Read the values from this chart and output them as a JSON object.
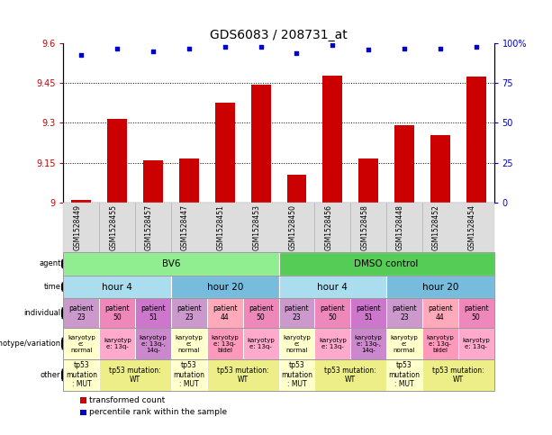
{
  "title": "GDS6083 / 208731_at",
  "samples": [
    "GSM1528449",
    "GSM1528455",
    "GSM1528457",
    "GSM1528447",
    "GSM1528451",
    "GSM1528453",
    "GSM1528450",
    "GSM1528456",
    "GSM1528458",
    "GSM1528448",
    "GSM1528452",
    "GSM1528454"
  ],
  "bar_values": [
    9.01,
    9.315,
    9.16,
    9.165,
    9.375,
    9.445,
    9.105,
    9.48,
    9.165,
    9.29,
    9.255,
    9.475
  ],
  "dot_values": [
    93,
    97,
    95,
    97,
    98,
    98,
    94,
    99,
    96,
    97,
    97,
    98
  ],
  "ylim_left": [
    9.0,
    9.6
  ],
  "ylim_right": [
    0,
    100
  ],
  "yticks_left": [
    9.0,
    9.15,
    9.3,
    9.45,
    9.6
  ],
  "yticks_right": [
    0,
    25,
    50,
    75,
    100
  ],
  "ytick_labels_left": [
    "9",
    "9.15",
    "9.3",
    "9.45",
    "9.6"
  ],
  "ytick_labels_right": [
    "0",
    "25",
    "50",
    "75",
    "100%"
  ],
  "bar_color": "#cc0000",
  "dot_color": "#0000cc",
  "agent_row": {
    "label": "agent",
    "groups": [
      {
        "text": "BV6",
        "span": [
          0,
          6
        ],
        "color": "#90ee90"
      },
      {
        "text": "DMSO control",
        "span": [
          6,
          12
        ],
        "color": "#55cc55"
      }
    ]
  },
  "time_row": {
    "label": "time",
    "groups": [
      {
        "text": "hour 4",
        "span": [
          0,
          3
        ],
        "color": "#aaddee"
      },
      {
        "text": "hour 20",
        "span": [
          3,
          6
        ],
        "color": "#77bbdd"
      },
      {
        "text": "hour 4",
        "span": [
          6,
          9
        ],
        "color": "#aaddee"
      },
      {
        "text": "hour 20",
        "span": [
          9,
          12
        ],
        "color": "#77bbdd"
      }
    ]
  },
  "individual_row": {
    "label": "individual",
    "cells": [
      {
        "text": "patient\n23",
        "color": "#cc99cc"
      },
      {
        "text": "patient\n50",
        "color": "#ee88bb"
      },
      {
        "text": "patient\n51",
        "color": "#cc77cc"
      },
      {
        "text": "patient\n23",
        "color": "#cc99cc"
      },
      {
        "text": "patient\n44",
        "color": "#ffaabb"
      },
      {
        "text": "patient\n50",
        "color": "#ee88bb"
      },
      {
        "text": "patient\n23",
        "color": "#cc99cc"
      },
      {
        "text": "patient\n50",
        "color": "#ee88bb"
      },
      {
        "text": "patient\n51",
        "color": "#cc77cc"
      },
      {
        "text": "patient\n23",
        "color": "#cc99cc"
      },
      {
        "text": "patient\n44",
        "color": "#ffaabb"
      },
      {
        "text": "patient\n50",
        "color": "#ee88bb"
      }
    ]
  },
  "genotype_row": {
    "label": "genotype/variation",
    "cells": [
      {
        "text": "karyotyp\ne:\nnormal",
        "color": "#ffffcc"
      },
      {
        "text": "karyotyp\ne: 13q-",
        "color": "#ffaacc"
      },
      {
        "text": "karyotyp\ne: 13q-,\n14q-",
        "color": "#cc88cc"
      },
      {
        "text": "karyotyp\ne:\nnormal",
        "color": "#ffffcc"
      },
      {
        "text": "karyotyp\ne: 13q-\nbidel",
        "color": "#ff99bb"
      },
      {
        "text": "karyotyp\ne: 13q-",
        "color": "#ffaacc"
      },
      {
        "text": "karyotyp\ne:\nnormal",
        "color": "#ffffcc"
      },
      {
        "text": "karyotyp\ne: 13q-",
        "color": "#ffaacc"
      },
      {
        "text": "karyotyp\ne: 13q-,\n14q-",
        "color": "#cc88cc"
      },
      {
        "text": "karyotyp\ne:\nnormal",
        "color": "#ffffcc"
      },
      {
        "text": "karyotyp\ne: 13q-\nbidel",
        "color": "#ff99bb"
      },
      {
        "text": "karyotyp\ne: 13q-",
        "color": "#ffaacc"
      }
    ]
  },
  "other_row": {
    "label": "other",
    "groups": [
      {
        "text": "tp53\nmutation\n: MUT",
        "span": [
          0,
          1
        ],
        "color": "#ffffcc"
      },
      {
        "text": "tp53 mutation:\nWT",
        "span": [
          1,
          3
        ],
        "color": "#eeee88"
      },
      {
        "text": "tp53\nmutation\n: MUT",
        "span": [
          3,
          4
        ],
        "color": "#ffffcc"
      },
      {
        "text": "tp53 mutation:\nWT",
        "span": [
          4,
          6
        ],
        "color": "#eeee88"
      },
      {
        "text": "tp53\nmutation\n: MUT",
        "span": [
          6,
          7
        ],
        "color": "#ffffcc"
      },
      {
        "text": "tp53 mutation:\nWT",
        "span": [
          7,
          9
        ],
        "color": "#eeee88"
      },
      {
        "text": "tp53\nmutation\n: MUT",
        "span": [
          9,
          10
        ],
        "color": "#ffffcc"
      },
      {
        "text": "tp53 mutation:\nWT",
        "span": [
          10,
          12
        ],
        "color": "#eeee88"
      }
    ]
  },
  "legend": [
    {
      "label": "transformed count",
      "color": "#cc0000"
    },
    {
      "label": "percentile rank within the sample",
      "color": "#0000cc"
    }
  ]
}
